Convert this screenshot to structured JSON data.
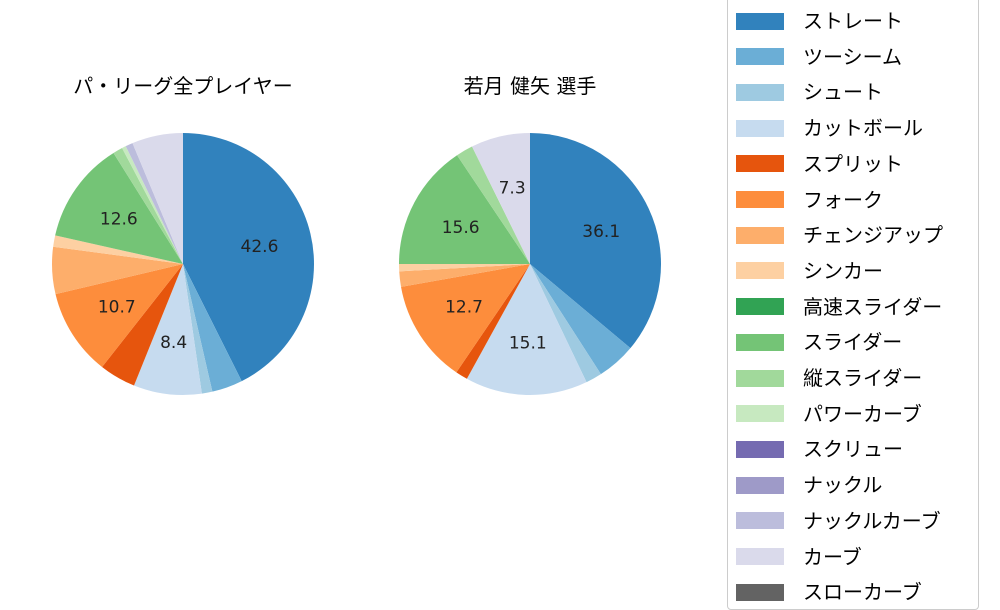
{
  "legend": {
    "items": [
      {
        "label": "ストレート",
        "color": "#3182bd"
      },
      {
        "label": "ツーシーム",
        "color": "#6baed6"
      },
      {
        "label": "シュート",
        "color": "#9ecae1"
      },
      {
        "label": "カットボール",
        "color": "#c6dbef"
      },
      {
        "label": "スプリット",
        "color": "#e6550d"
      },
      {
        "label": "フォーク",
        "color": "#fd8d3c"
      },
      {
        "label": "チェンジアップ",
        "color": "#fdae6b"
      },
      {
        "label": "シンカー",
        "color": "#fdd0a2"
      },
      {
        "label": "高速スライダー",
        "color": "#31a354"
      },
      {
        "label": "スライダー",
        "color": "#74c476"
      },
      {
        "label": "縦スライダー",
        "color": "#a1d99b"
      },
      {
        "label": "パワーカーブ",
        "color": "#c7e9c0"
      },
      {
        "label": "スクリュー",
        "color": "#756bb1"
      },
      {
        "label": "ナックル",
        "color": "#9e9ac8"
      },
      {
        "label": "ナックルカーブ",
        "color": "#bcbddc"
      },
      {
        "label": "カーブ",
        "color": "#dadaeb"
      },
      {
        "label": "スローカーブ",
        "color": "#636363"
      }
    ]
  },
  "chart_data": [
    {
      "type": "pie",
      "title": "パ・リーグ全プレイヤー",
      "categories": [
        "ストレート",
        "ツーシーム",
        "シュート",
        "カットボール",
        "スプリット",
        "フォーク",
        "チェンジアップ",
        "シンカー",
        "高速スライダー",
        "スライダー",
        "縦スライダー",
        "パワーカーブ",
        "スクリュー",
        "ナックル",
        "ナックルカーブ",
        "カーブ",
        "スローカーブ"
      ],
      "values": [
        42.6,
        3.8,
        1.3,
        8.4,
        4.5,
        10.7,
        5.8,
        1.4,
        0,
        12.6,
        1.2,
        0.5,
        0,
        0,
        0.9,
        6.3,
        0
      ],
      "labels_shown": [
        "42.6",
        "8.4",
        "10.7",
        "12.6"
      ],
      "start_angle": 90,
      "direction": "clockwise",
      "center": [
        183,
        264
      ],
      "radius": 131
    },
    {
      "type": "pie",
      "title": "若月 健矢  選手",
      "categories": [
        "ストレート",
        "ツーシーム",
        "シュート",
        "カットボール",
        "スプリット",
        "フォーク",
        "チェンジアップ",
        "シンカー",
        "高速スライダー",
        "スライダー",
        "縦スライダー",
        "パワーカーブ",
        "スクリュー",
        "ナックル",
        "ナックルカーブ",
        "カーブ",
        "スローカーブ"
      ],
      "values": [
        36.1,
        4.8,
        2.0,
        15.1,
        1.5,
        12.7,
        1.9,
        0.9,
        0,
        15.6,
        2.1,
        0,
        0,
        0,
        0,
        7.3,
        0
      ],
      "labels_shown": [
        "36.1",
        "15.1",
        "12.7",
        "15.6",
        "7.3"
      ],
      "start_angle": 90,
      "direction": "clockwise",
      "center": [
        530,
        264
      ],
      "radius": 131
    }
  ]
}
